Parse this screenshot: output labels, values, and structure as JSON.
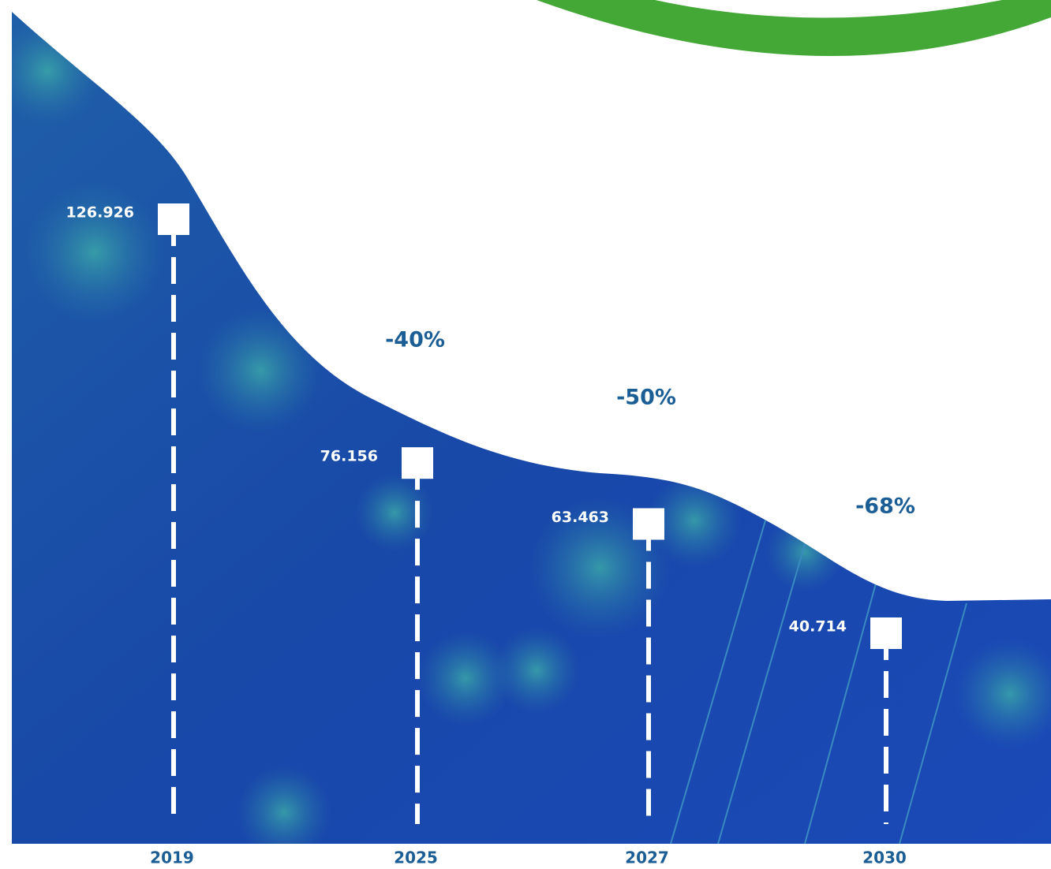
{
  "chart_data": {
    "type": "milestone",
    "categories": [
      "2019",
      "2025",
      "2027",
      "2030"
    ],
    "values": [
      126.926,
      76.156,
      63.463,
      40.714
    ],
    "annotations": [
      "-40%",
      "-50%",
      "-68%"
    ],
    "color": "#ffffff"
  }
}
